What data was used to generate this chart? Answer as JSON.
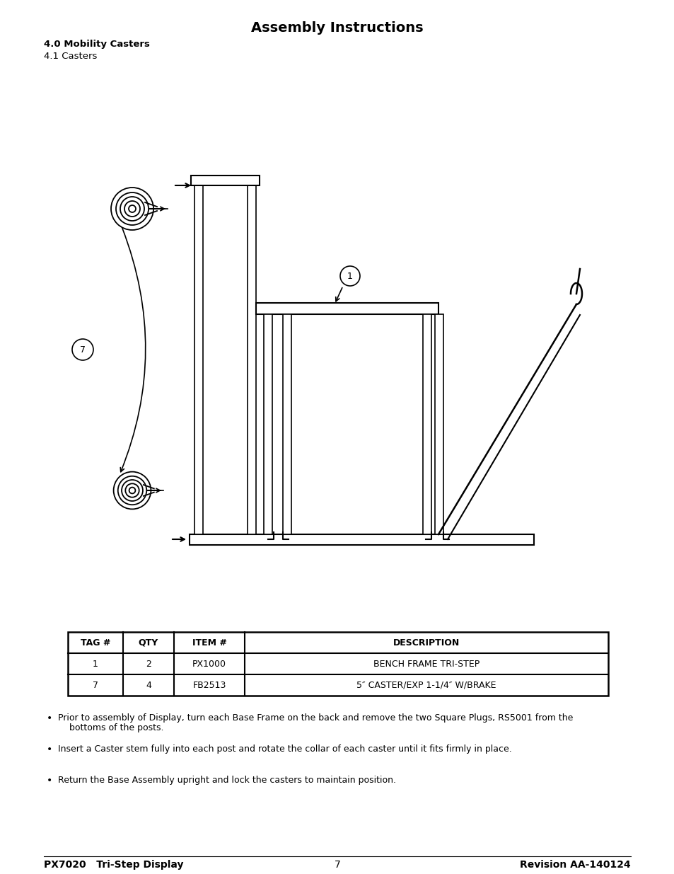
{
  "title": "Assembly Instructions",
  "section_bold": "4.0 Mobility Casters",
  "section_normal": "4.1 Casters",
  "table_headers": [
    "TAG #",
    "QTY",
    "ITEM #",
    "DESCRIPTION"
  ],
  "table_rows": [
    [
      "1",
      "2",
      "PX1000",
      "BENCH FRAME TRI-STEP"
    ],
    [
      "7",
      "4",
      "FB2513",
      "5″ CASTER/EXP 1-1/4″ W/BRAKE"
    ]
  ],
  "bullets": [
    "Prior to assembly of Display, turn each Base Frame on the back and remove the two Square Plugs, RS5001 from the\n    bottoms of the posts.",
    "Insert a Caster stem fully into each post and rotate the collar of each caster until it fits firmly in place.",
    "Return the Base Assembly upright and lock the casters to maintain position."
  ],
  "footer_left": "PX7020   Tri-Step Display",
  "footer_center": "7",
  "footer_right": "Revision AA-140124",
  "bg_color": "#ffffff",
  "line_color": "#000000"
}
